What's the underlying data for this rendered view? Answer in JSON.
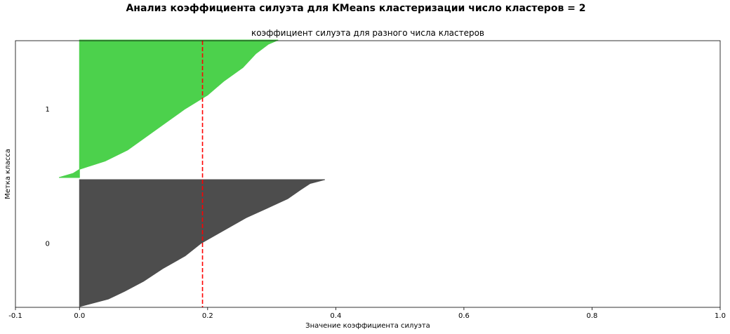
{
  "suptitle": "Анализ коэффициента силуэта для KMeans кластеризации число кластеров = 2",
  "chart_data": {
    "type": "area",
    "title": "коэффициент силуэта для разного числа кластеров",
    "xlabel": "Значение коэффициента силуэта",
    "ylabel": "Метка класса",
    "xlim": [
      -0.1,
      1.0
    ],
    "xticks": [
      "-0.1",
      "0.0",
      "0.2",
      "0.4",
      "0.6",
      "0.8",
      "1.0"
    ],
    "xtick_values": [
      -0.1,
      0.0,
      0.2,
      0.4,
      0.6,
      0.8,
      1.0
    ],
    "yticks": [],
    "grid": false,
    "average_silhouette": 0.192,
    "average_line_color": "#ff0000",
    "clusters": [
      {
        "label": "0",
        "color": "#4d4d4d",
        "size_fraction": 0.48,
        "profile": [
          {
            "position": 0.0,
            "value": 0.0
          },
          {
            "position": 0.06,
            "value": 0.045
          },
          {
            "position": 0.12,
            "value": 0.07
          },
          {
            "position": 0.2,
            "value": 0.1
          },
          {
            "position": 0.3,
            "value": 0.13
          },
          {
            "position": 0.4,
            "value": 0.165
          },
          {
            "position": 0.5,
            "value": 0.19
          },
          {
            "position": 0.6,
            "value": 0.225
          },
          {
            "position": 0.7,
            "value": 0.26
          },
          {
            "position": 0.78,
            "value": 0.295
          },
          {
            "position": 0.85,
            "value": 0.325
          },
          {
            "position": 0.92,
            "value": 0.345
          },
          {
            "position": 0.97,
            "value": 0.36
          },
          {
            "position": 1.0,
            "value": 0.383
          }
        ]
      },
      {
        "label": "1",
        "color": "#4cd14c",
        "size_fraction": 0.52,
        "profile": [
          {
            "position": 0.0,
            "value": -0.032
          },
          {
            "position": 0.03,
            "value": -0.01
          },
          {
            "position": 0.06,
            "value": 0.0
          },
          {
            "position": 0.12,
            "value": 0.04
          },
          {
            "position": 0.2,
            "value": 0.075
          },
          {
            "position": 0.3,
            "value": 0.105
          },
          {
            "position": 0.4,
            "value": 0.135
          },
          {
            "position": 0.5,
            "value": 0.165
          },
          {
            "position": 0.6,
            "value": 0.2
          },
          {
            "position": 0.7,
            "value": 0.225
          },
          {
            "position": 0.8,
            "value": 0.255
          },
          {
            "position": 0.9,
            "value": 0.275
          },
          {
            "position": 0.97,
            "value": 0.295
          },
          {
            "position": 1.0,
            "value": 0.31
          }
        ]
      }
    ]
  }
}
